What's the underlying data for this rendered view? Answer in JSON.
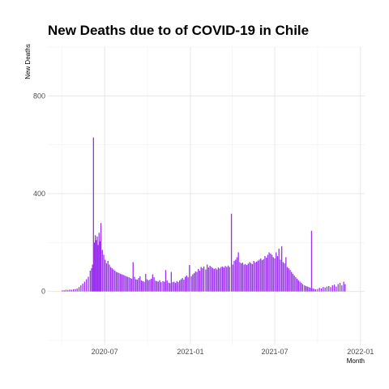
{
  "chart_data": {
    "type": "bar",
    "title": "New Deaths due to of COVID-19 in Chile",
    "xlabel": "Month",
    "ylabel": "New Deaths",
    "x_type": "date",
    "xlim": [
      "2020-03-01",
      "2022-01-10"
    ],
    "ylim": [
      -220,
      1000
    ],
    "y_ticks": [
      0,
      400,
      800
    ],
    "y_tick_labels": [
      "0",
      "400",
      "800"
    ],
    "x_ticks": [
      "2020-07-01",
      "2021-01-01",
      "2021-07-01",
      "2022-01-01"
    ],
    "x_tick_labels": [
      "2020-07",
      "2021-01",
      "2021-07",
      "2022-01"
    ],
    "bar_color": "#9b30f0",
    "grid": true,
    "legend": "none",
    "series": [
      {
        "points": [
          [
            "2020-04-01",
            4
          ],
          [
            "2020-04-05",
            5
          ],
          [
            "2020-04-09",
            7
          ],
          [
            "2020-04-13",
            6
          ],
          [
            "2020-04-17",
            8
          ],
          [
            "2020-04-21",
            7
          ],
          [
            "2020-04-25",
            9
          ],
          [
            "2020-04-29",
            10
          ],
          [
            "2020-05-03",
            12
          ],
          [
            "2020-05-07",
            18
          ],
          [
            "2020-05-11",
            25
          ],
          [
            "2020-05-15",
            32
          ],
          [
            "2020-05-19",
            40
          ],
          [
            "2020-05-23",
            50
          ],
          [
            "2020-05-27",
            60
          ],
          [
            "2020-05-31",
            85
          ],
          [
            "2020-06-03",
            95
          ],
          [
            "2020-06-05",
            110
          ],
          [
            "2020-06-07",
            630
          ],
          [
            "2020-06-09",
            200
          ],
          [
            "2020-06-11",
            230
          ],
          [
            "2020-06-13",
            210
          ],
          [
            "2020-06-15",
            225
          ],
          [
            "2020-06-17",
            190
          ],
          [
            "2020-06-19",
            240
          ],
          [
            "2020-06-21",
            205
          ],
          [
            "2020-06-23",
            280
          ],
          [
            "2020-06-26",
            170
          ],
          [
            "2020-06-29",
            150
          ],
          [
            "2020-07-02",
            130
          ],
          [
            "2020-07-05",
            115
          ],
          [
            "2020-07-08",
            125
          ],
          [
            "2020-07-11",
            110
          ],
          [
            "2020-07-14",
            100
          ],
          [
            "2020-07-17",
            95
          ],
          [
            "2020-07-20",
            90
          ],
          [
            "2020-07-23",
            85
          ],
          [
            "2020-07-26",
            80
          ],
          [
            "2020-07-29",
            78
          ],
          [
            "2020-08-01",
            75
          ],
          [
            "2020-08-04",
            72
          ],
          [
            "2020-08-07",
            70
          ],
          [
            "2020-08-10",
            68
          ],
          [
            "2020-08-13",
            65
          ],
          [
            "2020-08-16",
            62
          ],
          [
            "2020-08-19",
            60
          ],
          [
            "2020-08-22",
            58
          ],
          [
            "2020-08-25",
            55
          ],
          [
            "2020-08-28",
            52
          ],
          [
            "2020-08-31",
            120
          ],
          [
            "2020-09-03",
            60
          ],
          [
            "2020-09-06",
            50
          ],
          [
            "2020-09-09",
            48
          ],
          [
            "2020-09-12",
            55
          ],
          [
            "2020-09-15",
            62
          ],
          [
            "2020-09-18",
            45
          ],
          [
            "2020-09-21",
            42
          ],
          [
            "2020-09-24",
            40
          ],
          [
            "2020-09-27",
            72
          ],
          [
            "2020-09-30",
            50
          ],
          [
            "2020-10-03",
            45
          ],
          [
            "2020-10-06",
            48
          ],
          [
            "2020-10-09",
            52
          ],
          [
            "2020-10-12",
            70
          ],
          [
            "2020-10-15",
            58
          ],
          [
            "2020-10-18",
            44
          ],
          [
            "2020-10-21",
            42
          ],
          [
            "2020-10-24",
            40
          ],
          [
            "2020-10-27",
            46
          ],
          [
            "2020-10-30",
            38
          ],
          [
            "2020-11-03",
            42
          ],
          [
            "2020-11-06",
            40
          ],
          [
            "2020-11-09",
            88
          ],
          [
            "2020-11-12",
            45
          ],
          [
            "2020-11-15",
            36
          ],
          [
            "2020-11-18",
            34
          ],
          [
            "2020-11-21",
            80
          ],
          [
            "2020-11-24",
            38
          ],
          [
            "2020-11-27",
            40
          ],
          [
            "2020-11-30",
            35
          ],
          [
            "2020-12-03",
            42
          ],
          [
            "2020-12-06",
            38
          ],
          [
            "2020-12-09",
            45
          ],
          [
            "2020-12-12",
            50
          ],
          [
            "2020-12-15",
            55
          ],
          [
            "2020-12-18",
            48
          ],
          [
            "2020-12-21",
            60
          ],
          [
            "2020-12-24",
            65
          ],
          [
            "2020-12-27",
            58
          ],
          [
            "2020-12-30",
            108
          ],
          [
            "2021-01-03",
            62
          ],
          [
            "2021-01-06",
            70
          ],
          [
            "2021-01-09",
            75
          ],
          [
            "2021-01-12",
            82
          ],
          [
            "2021-01-15",
            80
          ],
          [
            "2021-01-18",
            92
          ],
          [
            "2021-01-21",
            85
          ],
          [
            "2021-01-24",
            100
          ],
          [
            "2021-01-27",
            95
          ],
          [
            "2021-01-30",
            102
          ],
          [
            "2021-02-03",
            90
          ],
          [
            "2021-02-06",
            110
          ],
          [
            "2021-02-09",
            98
          ],
          [
            "2021-02-12",
            105
          ],
          [
            "2021-02-15",
            100
          ],
          [
            "2021-02-18",
            96
          ],
          [
            "2021-02-21",
            92
          ],
          [
            "2021-02-24",
            95
          ],
          [
            "2021-02-27",
            90
          ],
          [
            "2021-03-02",
            98
          ],
          [
            "2021-03-05",
            94
          ],
          [
            "2021-03-08",
            100
          ],
          [
            "2021-03-11",
            102
          ],
          [
            "2021-03-14",
            98
          ],
          [
            "2021-03-17",
            104
          ],
          [
            "2021-03-20",
            100
          ],
          [
            "2021-03-23",
            106
          ],
          [
            "2021-03-26",
            100
          ],
          [
            "2021-03-30",
            318
          ],
          [
            "2021-04-02",
            110
          ],
          [
            "2021-04-05",
            125
          ],
          [
            "2021-04-08",
            130
          ],
          [
            "2021-04-11",
            140
          ],
          [
            "2021-04-14",
            160
          ],
          [
            "2021-04-17",
            120
          ],
          [
            "2021-04-20",
            115
          ],
          [
            "2021-04-23",
            118
          ],
          [
            "2021-04-26",
            110
          ],
          [
            "2021-04-29",
            112
          ],
          [
            "2021-05-02",
            108
          ],
          [
            "2021-05-05",
            114
          ],
          [
            "2021-05-08",
            120
          ],
          [
            "2021-05-11",
            116
          ],
          [
            "2021-05-14",
            112
          ],
          [
            "2021-05-17",
            125
          ],
          [
            "2021-05-20",
            118
          ],
          [
            "2021-05-23",
            122
          ],
          [
            "2021-05-26",
            126
          ],
          [
            "2021-05-29",
            130
          ],
          [
            "2021-06-01",
            135
          ],
          [
            "2021-06-04",
            128
          ],
          [
            "2021-06-07",
            132
          ],
          [
            "2021-06-10",
            145
          ],
          [
            "2021-06-13",
            138
          ],
          [
            "2021-06-16",
            150
          ],
          [
            "2021-06-19",
            160
          ],
          [
            "2021-06-22",
            155
          ],
          [
            "2021-06-25",
            150
          ],
          [
            "2021-06-28",
            140
          ],
          [
            "2021-07-01",
            135
          ],
          [
            "2021-07-04",
            160
          ],
          [
            "2021-07-07",
            145
          ],
          [
            "2021-07-10",
            175
          ],
          [
            "2021-07-13",
            130
          ],
          [
            "2021-07-16",
            185
          ],
          [
            "2021-07-19",
            120
          ],
          [
            "2021-07-22",
            115
          ],
          [
            "2021-07-25",
            140
          ],
          [
            "2021-07-28",
            100
          ],
          [
            "2021-07-31",
            95
          ],
          [
            "2021-08-03",
            88
          ],
          [
            "2021-08-06",
            80
          ],
          [
            "2021-08-09",
            72
          ],
          [
            "2021-08-12",
            65
          ],
          [
            "2021-08-15",
            58
          ],
          [
            "2021-08-18",
            52
          ],
          [
            "2021-08-21",
            45
          ],
          [
            "2021-08-24",
            40
          ],
          [
            "2021-08-27",
            35
          ],
          [
            "2021-08-30",
            30
          ],
          [
            "2021-09-03",
            25
          ],
          [
            "2021-09-06",
            22
          ],
          [
            "2021-09-09",
            20
          ],
          [
            "2021-09-12",
            18
          ],
          [
            "2021-09-15",
            15
          ],
          [
            "2021-09-18",
            248
          ],
          [
            "2021-09-21",
            12
          ],
          [
            "2021-09-24",
            10
          ],
          [
            "2021-09-27",
            8
          ],
          [
            "2021-10-01",
            10
          ],
          [
            "2021-10-05",
            15
          ],
          [
            "2021-10-09",
            12
          ],
          [
            "2021-10-13",
            18
          ],
          [
            "2021-10-17",
            16
          ],
          [
            "2021-10-21",
            20
          ],
          [
            "2021-10-25",
            22
          ],
          [
            "2021-10-29",
            18
          ],
          [
            "2021-11-02",
            25
          ],
          [
            "2021-11-06",
            28
          ],
          [
            "2021-11-10",
            20
          ],
          [
            "2021-11-14",
            30
          ],
          [
            "2021-11-18",
            35
          ],
          [
            "2021-11-22",
            25
          ],
          [
            "2021-11-26",
            40
          ],
          [
            "2021-11-29",
            30
          ]
        ]
      }
    ]
  }
}
